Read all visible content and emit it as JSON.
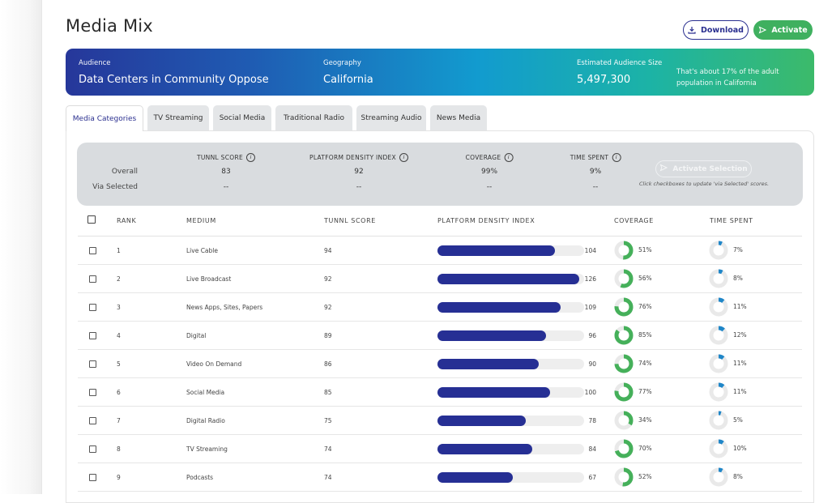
{
  "page": {
    "title": "Media Mix"
  },
  "actions": {
    "download": "Download",
    "activate": "Activate"
  },
  "banner": {
    "audience_label": "Audience",
    "audience_value": "Data Centers in Community Oppose",
    "geography_label": "Geography",
    "geography_value": "California",
    "size_label": "Estimated Audience Size",
    "size_value": "5,497,300",
    "size_note": "That's about 17% of the adult population in California"
  },
  "tabs": [
    {
      "label": "Media Categories",
      "active": true
    },
    {
      "label": "TV Streaming",
      "active": false
    },
    {
      "label": "Social Media",
      "active": false
    },
    {
      "label": "Traditional Radio",
      "active": false
    },
    {
      "label": "Streaming Audio",
      "active": false
    },
    {
      "label": "News Media",
      "active": false
    }
  ],
  "summary": {
    "headers": {
      "tunnl": "TUNNL SCORE",
      "pdi": "PLATFORM DENSITY INDEX",
      "coverage": "COVERAGE",
      "time": "TIME SPENT"
    },
    "overall_label": "Overall",
    "via_label": "Via Selected",
    "overall": {
      "tunnl": "83",
      "pdi": "92",
      "coverage": "99%",
      "time": "9%"
    },
    "via": {
      "tunnl": "--",
      "pdi": "--",
      "coverage": "--",
      "time": "--"
    },
    "activate_selection": "Activate Selection",
    "hint": "Click checkboxes to update 'via Selected' scores."
  },
  "table": {
    "headers": {
      "rank": "RANK",
      "medium": "MEDIUM",
      "tunnl": "TUNNL SCORE",
      "pdi": "PLATFORM DENSITY INDEX",
      "coverage": "COVERAGE",
      "time": "TIME SPENT"
    },
    "pdi_max": 130,
    "rows": [
      {
        "rank": "1",
        "medium": "Live Cable",
        "tunnl": "94",
        "pdi": 104,
        "coverage": 51,
        "time": 7
      },
      {
        "rank": "2",
        "medium": "Live Broadcast",
        "tunnl": "92",
        "pdi": 126,
        "coverage": 56,
        "time": 8
      },
      {
        "rank": "3",
        "medium": "News Apps, Sites, Papers",
        "tunnl": "92",
        "pdi": 109,
        "coverage": 76,
        "time": 11
      },
      {
        "rank": "4",
        "medium": "Digital",
        "tunnl": "89",
        "pdi": 96,
        "coverage": 85,
        "time": 12
      },
      {
        "rank": "5",
        "medium": "Video On Demand",
        "tunnl": "86",
        "pdi": 90,
        "coverage": 74,
        "time": 11
      },
      {
        "rank": "6",
        "medium": "Social Media",
        "tunnl": "85",
        "pdi": 100,
        "coverage": 77,
        "time": 11
      },
      {
        "rank": "7",
        "medium": "Digital Radio",
        "tunnl": "75",
        "pdi": 78,
        "coverage": 34,
        "time": 5
      },
      {
        "rank": "8",
        "medium": "TV Streaming",
        "tunnl": "74",
        "pdi": 84,
        "coverage": 70,
        "time": 10
      },
      {
        "rank": "9",
        "medium": "Podcasts",
        "tunnl": "74",
        "pdi": 67,
        "coverage": 52,
        "time": 8
      }
    ]
  },
  "colors": {
    "bar": "#262f94",
    "coverage": "#45b05a",
    "time": "#1f86c8",
    "ring_bg": "#e9e9e9",
    "activate": "#3fb05f"
  }
}
